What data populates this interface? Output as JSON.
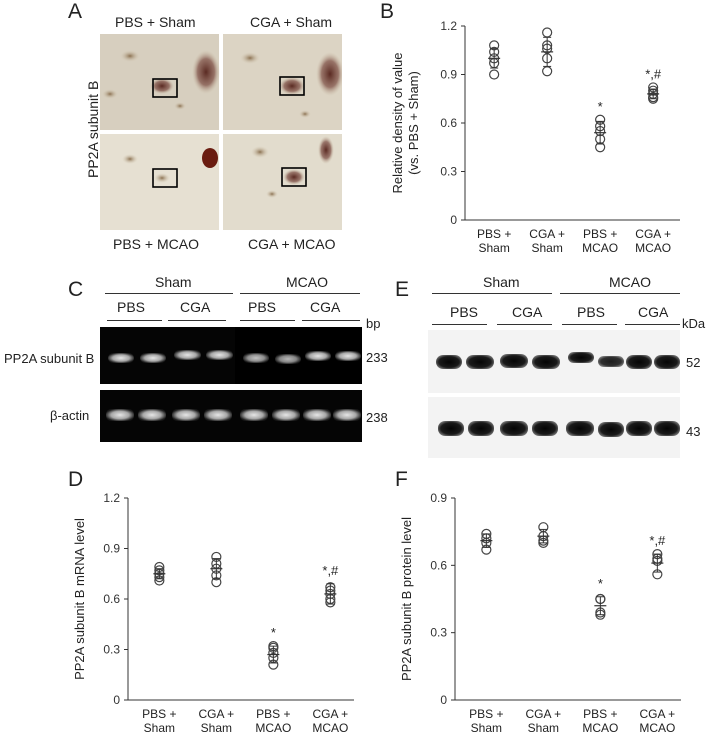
{
  "panels": {
    "A": {
      "label": "A",
      "ylabel": "PP2A subunit B",
      "quadrants": [
        "PBS + Sham",
        "CGA + Sham",
        "PBS + MCAO",
        "CGA + MCAO"
      ]
    },
    "B": {
      "label": "B"
    },
    "C": {
      "label": "C",
      "groups": [
        "Sham",
        "MCAO"
      ],
      "subgroups": [
        "PBS",
        "CGA",
        "PBS",
        "CGA"
      ],
      "unit": "bp",
      "rows": [
        {
          "label": "PP2A subunit B",
          "size": "233"
        },
        {
          "label": "β-actin",
          "size": "238"
        }
      ]
    },
    "D": {
      "label": "D"
    },
    "E": {
      "label": "E",
      "groups": [
        "Sham",
        "MCAO"
      ],
      "subgroups": [
        "PBS",
        "CGA",
        "PBS",
        "CGA"
      ],
      "unit": "kDa",
      "rows": [
        {
          "size": "52"
        },
        {
          "size": "43"
        }
      ]
    },
    "F": {
      "label": "F"
    }
  },
  "chart_data": [
    {
      "panel": "B",
      "type": "scatter",
      "ylabel": "Relative density of value\n(vs. PBS + Sham)",
      "categories": [
        "PBS +\nSham",
        "CGA +\nSham",
        "PBS +\nMCAO",
        "CGA +\nMCAO"
      ],
      "yticks": [
        "0",
        "0.3",
        "0.6",
        "0.9",
        "1.2"
      ],
      "ylim": [
        0,
        1.2
      ],
      "points": [
        [
          0.9,
          0.97,
          1.0,
          1.04,
          1.08
        ],
        [
          0.92,
          1.0,
          1.06,
          1.08,
          1.16
        ],
        [
          0.45,
          0.5,
          0.55,
          0.58,
          0.62
        ],
        [
          0.75,
          0.76,
          0.78,
          0.8,
          0.82
        ]
      ],
      "mean": [
        1.0,
        1.04,
        0.54,
        0.78
      ],
      "err": [
        0.06,
        0.09,
        0.07,
        0.03
      ],
      "annotations": [
        "",
        "",
        "*",
        "*,#"
      ]
    },
    {
      "panel": "D",
      "type": "scatter",
      "ylabel": "PP2A subunit B mRNA level",
      "categories": [
        "PBS +\nSham",
        "CGA +\nSham",
        "PBS +\nMCAO",
        "CGA +\nMCAO"
      ],
      "yticks": [
        "0",
        "0.3",
        "0.6",
        "0.9",
        "1.2"
      ],
      "ylim": [
        0,
        1.2
      ],
      "points": [
        [
          0.71,
          0.73,
          0.75,
          0.77,
          0.79
        ],
        [
          0.7,
          0.74,
          0.78,
          0.81,
          0.85
        ],
        [
          0.21,
          0.25,
          0.28,
          0.31,
          0.32
        ],
        [
          0.58,
          0.6,
          0.63,
          0.65,
          0.67
        ]
      ],
      "mean": [
        0.75,
        0.78,
        0.27,
        0.63
      ],
      "err": [
        0.03,
        0.06,
        0.05,
        0.06
      ],
      "annotations": [
        "",
        "",
        "*",
        "*,#"
      ]
    },
    {
      "panel": "F",
      "type": "scatter",
      "ylabel": "PP2A subunit B protein level",
      "categories": [
        "PBS +\nSham",
        "CGA +\nSham",
        "PBS +\nMCAO",
        "CGA +\nMCAO"
      ],
      "yticks": [
        "0",
        "0.3",
        "0.6",
        "0.9"
      ],
      "ylim": [
        0,
        0.9
      ],
      "points": [
        [
          0.67,
          0.7,
          0.72,
          0.74
        ],
        [
          0.7,
          0.71,
          0.73,
          0.77
        ],
        [
          0.38,
          0.39,
          0.45,
          0.45
        ],
        [
          0.56,
          0.62,
          0.63,
          0.65
        ]
      ],
      "mean": [
        0.71,
        0.73,
        0.42,
        0.61
      ],
      "err": [
        0.03,
        0.03,
        0.04,
        0.04
      ],
      "annotations": [
        "",
        "",
        "*",
        "*,#"
      ]
    }
  ]
}
